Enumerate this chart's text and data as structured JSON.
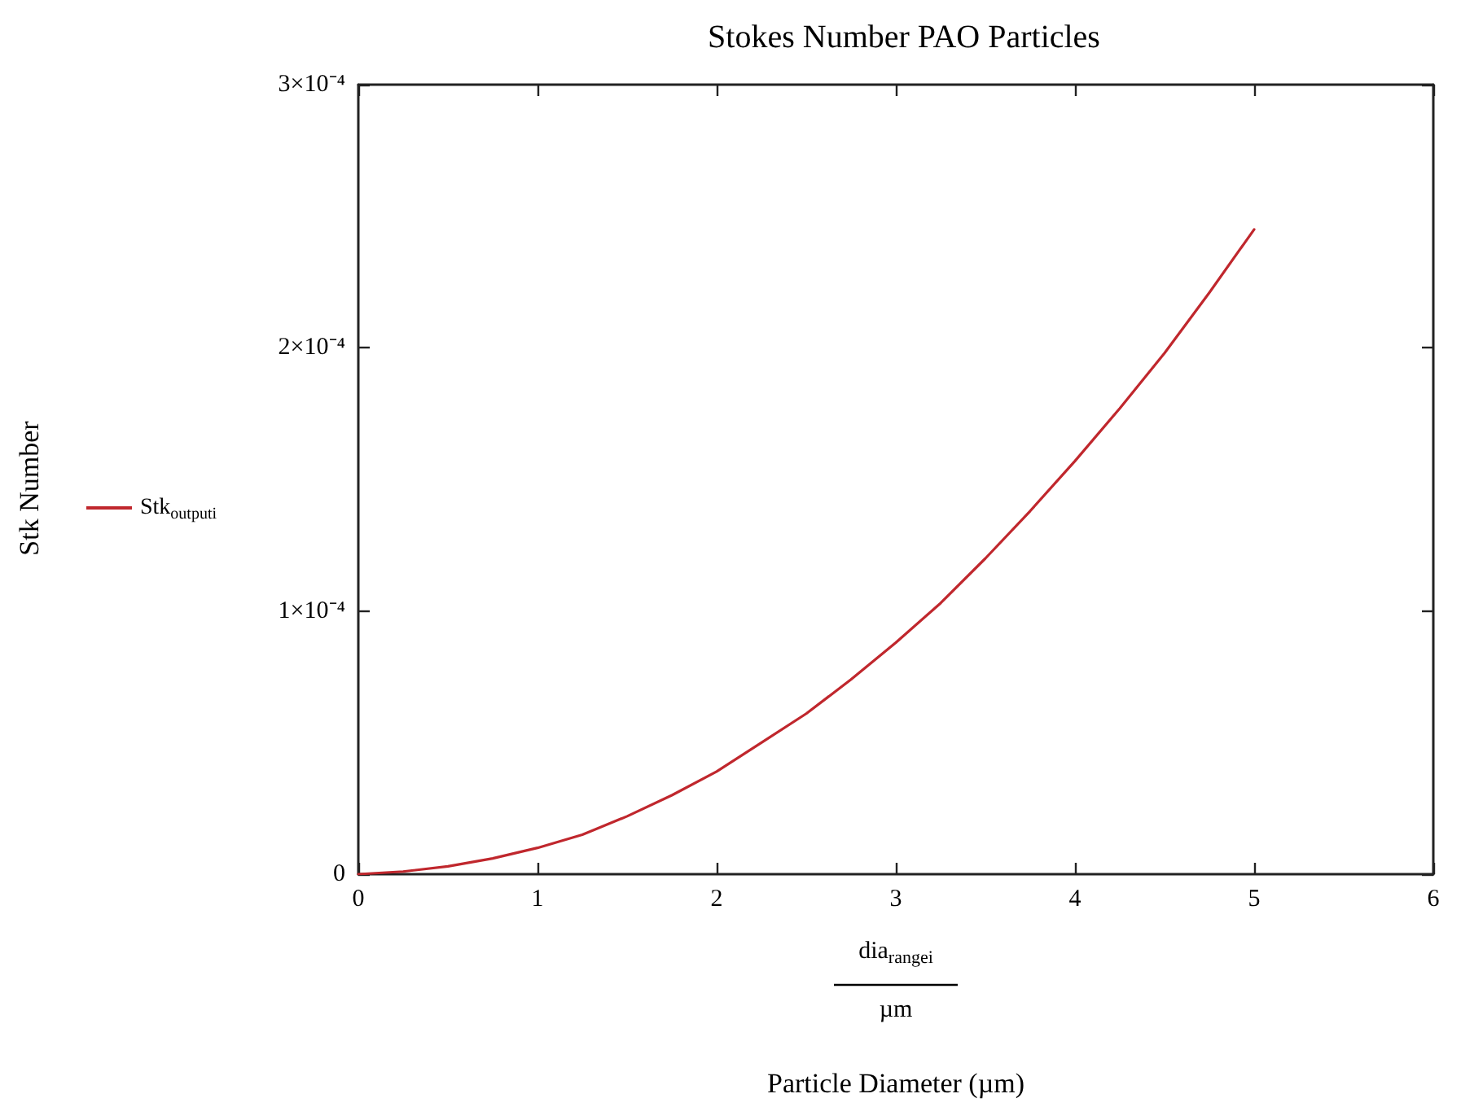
{
  "chart_data": {
    "type": "line",
    "title": "Stokes Number PAO Particles",
    "annotations": [
      "dia$_{range}$$_{i}$",
      "µm",
      "Particle Diameter (µm)",
      "Stk Number"
    ],
    "x": [
      0,
      0.25,
      0.5,
      0.75,
      1,
      1.25,
      1.5,
      1.75,
      2,
      2.25,
      2.5,
      2.75,
      3,
      3.25,
      3.5,
      3.75,
      4,
      4.25,
      4.5,
      4.75,
      5
    ],
    "series": [
      {
        "name": "Stk$_{output}$$_{i}$",
        "color": "#c0272d",
        "values": [
          0,
          1e-06,
          3e-06,
          6e-06,
          1e-05,
          1.5e-05,
          2.2e-05,
          3e-05,
          3.9e-05,
          5e-05,
          6.1e-05,
          7.4e-05,
          8.8e-05,
          0.000103,
          0.00012,
          0.000138,
          0.000157,
          0.000177,
          0.000198,
          0.000221,
          0.000245
        ]
      }
    ],
    "xlim": [
      0,
      6
    ],
    "xticks": [
      0,
      1,
      2,
      3,
      4,
      5,
      6
    ],
    "ylim": [
      0,
      0.0003
    ],
    "yticks": [
      0,
      {
        "value": 0.0001,
        "label": "1×10⁻⁴"
      },
      {
        "value": 0.0002,
        "label": "2×10⁻⁴"
      },
      {
        "value": 0.0003,
        "label": "3×10⁻⁴"
      }
    ],
    "grid": false,
    "legend": "left",
    "marker": "none",
    "line_style": "solid"
  }
}
